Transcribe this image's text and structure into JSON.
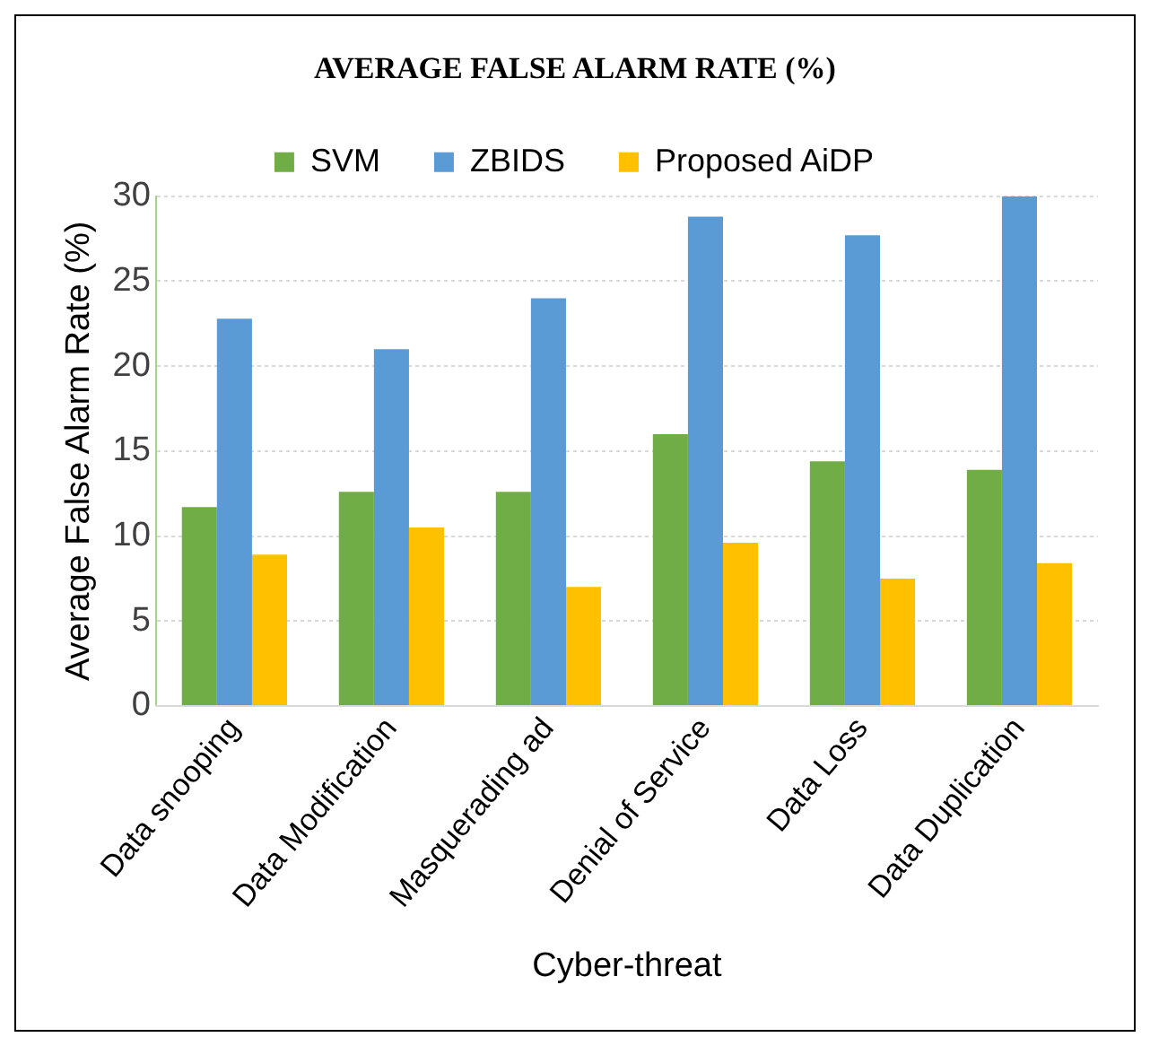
{
  "chart_data": {
    "type": "bar",
    "title": "AVERAGE FALSE ALARM RATE (%)",
    "xlabel": "Cyber-threat",
    "ylabel": "Average False Alarm Rate (%)",
    "categories": [
      "Data snooping",
      "Data Modification",
      "Masquerading ad",
      "Denial of Service",
      "Data Loss",
      "Data Duplication"
    ],
    "series": [
      {
        "name": "SVM",
        "color": "#70ad47",
        "values": [
          11.7,
          12.6,
          12.6,
          16,
          14.4,
          13.9
        ]
      },
      {
        "name": "ZBIDS",
        "color": "#5b9bd5",
        "values": [
          22.8,
          21,
          24,
          28.8,
          27.7,
          30
        ]
      },
      {
        "name": "Proposed AiDP",
        "color": "#ffc000",
        "values": [
          8.9,
          10.5,
          7,
          9.6,
          7.5,
          8.4
        ]
      }
    ],
    "ylim": [
      0,
      30
    ],
    "yticks": [
      0,
      5,
      10,
      15,
      20,
      25,
      30
    ],
    "grid": "y",
    "legend": "top"
  }
}
